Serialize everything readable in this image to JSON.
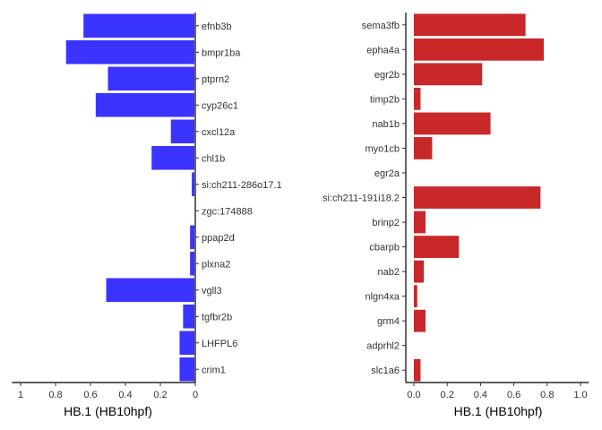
{
  "chart_data": [
    {
      "type": "bar",
      "orientation": "horizontal",
      "x_reversed": true,
      "bar_color": "#3b33ff",
      "categories": [
        "efnb3b",
        "bmpr1ba",
        "ptprn2",
        "cyp26c1",
        "cxcl12a",
        "chl1b",
        "si:ch211-286o17.1",
        "zgc:174888",
        "ppap2d",
        "plxna2",
        "vgll3",
        "tgfbr2b",
        "LHFPL6",
        "crim1"
      ],
      "values": [
        0.64,
        0.74,
        0.5,
        0.57,
        0.14,
        0.25,
        0.02,
        0.0,
        0.03,
        0.03,
        0.51,
        0.07,
        0.09,
        0.09
      ],
      "xlabel": "HB.1 (HB10hpf)",
      "xlim": [
        0,
        1.05
      ],
      "xticks": [
        1,
        0.8,
        0.6,
        0.4,
        0.2,
        0
      ]
    },
    {
      "type": "bar",
      "orientation": "horizontal",
      "x_reversed": false,
      "bar_color": "#c8282a",
      "categories": [
        "sema3fb",
        "epha4a",
        "egr2b",
        "timp2b",
        "nab1b",
        "myo1cb",
        "egr2a",
        "si:ch211-191i18.2",
        "brinp2",
        "cbarpb",
        "nab2",
        "nlgn4xa",
        "grm4",
        "adprhl2",
        "slc1a6"
      ],
      "values": [
        0.67,
        0.78,
        0.41,
        0.04,
        0.46,
        0.11,
        0.0,
        0.76,
        0.07,
        0.27,
        0.06,
        0.02,
        0.07,
        0.0,
        0.04
      ],
      "xlabel": "HB.1 (HB10hpf)",
      "xlim": [
        0,
        1.05
      ],
      "xticks": [
        "0.0",
        "0.2",
        "0.4",
        "0.6",
        "0.8",
        "1.0"
      ]
    }
  ]
}
